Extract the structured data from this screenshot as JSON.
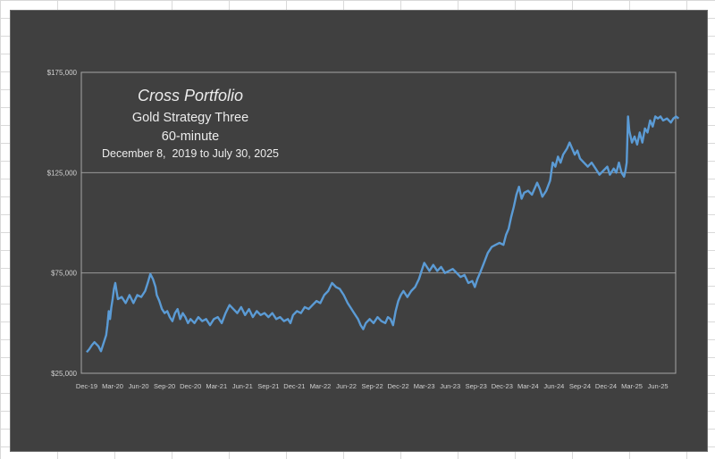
{
  "chart_data": {
    "type": "line",
    "title": "Cross Portfolio",
    "subtitle_lines": [
      "Gold Strategy Three",
      "60-minute",
      "December 8,  2019 to July 30, 2025"
    ],
    "xlabel": "",
    "ylabel": "",
    "ylim": [
      25000,
      175000
    ],
    "y_ticks": [
      25000,
      75000,
      125000,
      175000
    ],
    "y_tick_labels": [
      "$25,000",
      "$75,000",
      "$125,000",
      "$175,000"
    ],
    "x_tick_labels": [
      "Dec-19",
      "Mar-20",
      "Jun-20",
      "Sep-20",
      "Dec-20",
      "Mar-21",
      "Jun-21",
      "Sep-21",
      "Dec-21",
      "Mar-22",
      "Jun-22",
      "Sep-22",
      "Dec-22",
      "Mar-23",
      "Jun-23",
      "Sep-23",
      "Dec-23",
      "Mar-24",
      "Jun-24",
      "Sep-24",
      "Dec-24",
      "Mar-25",
      "Jun-25"
    ],
    "grid": "horizontal",
    "legend": "none",
    "series_color": "#5b9bd5",
    "series": [
      {
        "x_start": 0,
        "x_end": 22.8,
        "points": [
          [
            0,
            35500
          ],
          [
            0.1,
            37000
          ],
          [
            0.2,
            39000
          ],
          [
            0.3,
            40500
          ],
          [
            0.45,
            38500
          ],
          [
            0.55,
            36000
          ],
          [
            0.65,
            40000
          ],
          [
            0.75,
            44000
          ],
          [
            0.8,
            49000
          ],
          [
            0.85,
            56000
          ],
          [
            0.9,
            52000
          ],
          [
            0.95,
            58000
          ],
          [
            1.0,
            62000
          ],
          [
            1.05,
            67000
          ],
          [
            1.1,
            70000
          ],
          [
            1.15,
            66000
          ],
          [
            1.2,
            62000
          ],
          [
            1.35,
            63000
          ],
          [
            1.5,
            60000
          ],
          [
            1.65,
            64000
          ],
          [
            1.8,
            60000
          ],
          [
            1.95,
            64000
          ],
          [
            2.1,
            63000
          ],
          [
            2.25,
            66000
          ],
          [
            2.35,
            70000
          ],
          [
            2.45,
            74500
          ],
          [
            2.55,
            72000
          ],
          [
            2.65,
            68000
          ],
          [
            2.7,
            64000
          ],
          [
            2.8,
            61000
          ],
          [
            2.9,
            57000
          ],
          [
            3.0,
            55000
          ],
          [
            3.1,
            56000
          ],
          [
            3.2,
            53000
          ],
          [
            3.3,
            51000
          ],
          [
            3.4,
            55000
          ],
          [
            3.5,
            57000
          ],
          [
            3.6,
            52000
          ],
          [
            3.7,
            55000
          ],
          [
            3.8,
            53000
          ],
          [
            3.9,
            50000
          ],
          [
            4.0,
            52000
          ],
          [
            4.15,
            50000
          ],
          [
            4.3,
            53000
          ],
          [
            4.45,
            51000
          ],
          [
            4.6,
            52000
          ],
          [
            4.75,
            49000
          ],
          [
            4.9,
            52000
          ],
          [
            5.05,
            53000
          ],
          [
            5.2,
            50000
          ],
          [
            5.35,
            55000
          ],
          [
            5.5,
            59000
          ],
          [
            5.65,
            57000
          ],
          [
            5.8,
            55000
          ],
          [
            5.95,
            58000
          ],
          [
            6.1,
            54000
          ],
          [
            6.25,
            57000
          ],
          [
            6.4,
            53000
          ],
          [
            6.55,
            56000
          ],
          [
            6.7,
            54000
          ],
          [
            6.85,
            55000
          ],
          [
            7.0,
            53000
          ],
          [
            7.15,
            55000
          ],
          [
            7.3,
            52000
          ],
          [
            7.45,
            53000
          ],
          [
            7.6,
            51000
          ],
          [
            7.75,
            52000
          ],
          [
            7.85,
            50000
          ],
          [
            7.95,
            54000
          ],
          [
            8.1,
            56000
          ],
          [
            8.25,
            55000
          ],
          [
            8.4,
            58000
          ],
          [
            8.55,
            57000
          ],
          [
            8.7,
            59000
          ],
          [
            8.85,
            61000
          ],
          [
            9.0,
            60000
          ],
          [
            9.15,
            64000
          ],
          [
            9.3,
            66000
          ],
          [
            9.45,
            70000
          ],
          [
            9.6,
            68000
          ],
          [
            9.75,
            67000
          ],
          [
            9.9,
            64000
          ],
          [
            10.05,
            60000
          ],
          [
            10.15,
            58000
          ],
          [
            10.3,
            55000
          ],
          [
            10.45,
            52000
          ],
          [
            10.55,
            49000
          ],
          [
            10.65,
            47000
          ],
          [
            10.75,
            50000
          ],
          [
            10.9,
            52000
          ],
          [
            11.05,
            50000
          ],
          [
            11.2,
            53000
          ],
          [
            11.35,
            51000
          ],
          [
            11.5,
            50000
          ],
          [
            11.6,
            53000
          ],
          [
            11.7,
            52000
          ],
          [
            11.8,
            49000
          ],
          [
            11.9,
            56000
          ],
          [
            12.0,
            61000
          ],
          [
            12.1,
            64000
          ],
          [
            12.2,
            66000
          ],
          [
            12.35,
            63000
          ],
          [
            12.5,
            66000
          ],
          [
            12.65,
            68000
          ],
          [
            12.8,
            72000
          ],
          [
            12.9,
            76000
          ],
          [
            13.0,
            80000
          ],
          [
            13.1,
            78000
          ],
          [
            13.2,
            76000
          ],
          [
            13.35,
            79000
          ],
          [
            13.5,
            76000
          ],
          [
            13.65,
            78000
          ],
          [
            13.8,
            75000
          ],
          [
            13.95,
            76000
          ],
          [
            14.1,
            77000
          ],
          [
            14.25,
            75000
          ],
          [
            14.4,
            73000
          ],
          [
            14.55,
            74000
          ],
          [
            14.7,
            70000
          ],
          [
            14.85,
            71000
          ],
          [
            14.95,
            68000
          ],
          [
            15.05,
            72000
          ],
          [
            15.15,
            75000
          ],
          [
            15.3,
            80000
          ],
          [
            15.45,
            85000
          ],
          [
            15.6,
            88000
          ],
          [
            15.75,
            89000
          ],
          [
            15.9,
            90000
          ],
          [
            16.05,
            89000
          ],
          [
            16.15,
            94000
          ],
          [
            16.25,
            97000
          ],
          [
            16.35,
            103000
          ],
          [
            16.45,
            108000
          ],
          [
            16.55,
            114000
          ],
          [
            16.65,
            118000
          ],
          [
            16.75,
            112000
          ],
          [
            16.85,
            115000
          ],
          [
            17.0,
            116000
          ],
          [
            17.15,
            114000
          ],
          [
            17.25,
            117000
          ],
          [
            17.35,
            120000
          ],
          [
            17.45,
            117000
          ],
          [
            17.55,
            113000
          ],
          [
            17.7,
            116000
          ],
          [
            17.85,
            121000
          ],
          [
            17.95,
            130000
          ],
          [
            18.05,
            128000
          ],
          [
            18.15,
            133000
          ],
          [
            18.25,
            130000
          ],
          [
            18.35,
            134000
          ],
          [
            18.5,
            137000
          ],
          [
            18.6,
            140000
          ],
          [
            18.7,
            137000
          ],
          [
            18.8,
            134000
          ],
          [
            18.9,
            136000
          ],
          [
            19.0,
            132000
          ],
          [
            19.15,
            130000
          ],
          [
            19.3,
            128000
          ],
          [
            19.45,
            130000
          ],
          [
            19.6,
            127000
          ],
          [
            19.75,
            124000
          ],
          [
            19.9,
            126000
          ],
          [
            20.05,
            128000
          ],
          [
            20.15,
            124000
          ],
          [
            20.3,
            127000
          ],
          [
            20.4,
            125000
          ],
          [
            20.5,
            130000
          ],
          [
            20.6,
            125000
          ],
          [
            20.7,
            123000
          ],
          [
            20.75,
            126000
          ],
          [
            20.8,
            130000
          ],
          [
            20.85,
            153000
          ],
          [
            20.9,
            146000
          ],
          [
            21.0,
            140000
          ],
          [
            21.1,
            143000
          ],
          [
            21.2,
            139000
          ],
          [
            21.3,
            145000
          ],
          [
            21.4,
            140000
          ],
          [
            21.5,
            147000
          ],
          [
            21.6,
            145000
          ],
          [
            21.7,
            151000
          ],
          [
            21.8,
            148000
          ],
          [
            21.9,
            153000
          ],
          [
            22.0,
            152000
          ],
          [
            22.1,
            153000
          ],
          [
            22.2,
            151000
          ],
          [
            22.35,
            152000
          ],
          [
            22.5,
            150000
          ],
          [
            22.6,
            152000
          ],
          [
            22.7,
            153000
          ],
          [
            22.8,
            152000
          ]
        ]
      }
    ]
  }
}
